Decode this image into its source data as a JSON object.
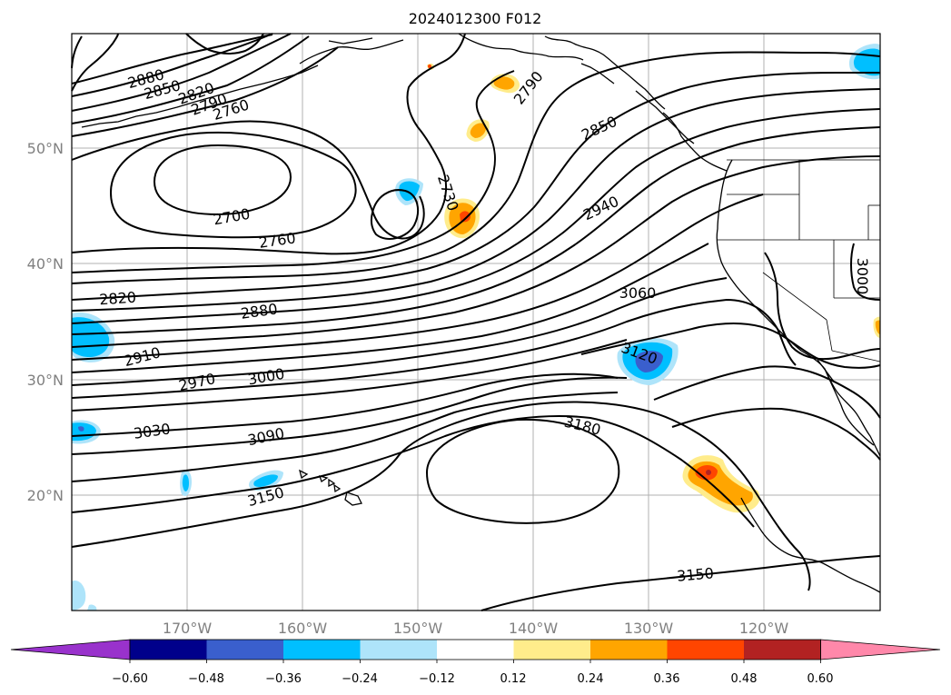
{
  "title": "2024012300 F012",
  "map": {
    "lat_labels": [
      "50°N",
      "40°N",
      "30°N",
      "20°N"
    ],
    "lon_labels": [
      "170°W",
      "160°W",
      "150°W",
      "140°W",
      "130°W",
      "120°W"
    ],
    "contour_labels": [
      "2880",
      "2850",
      "2820",
      "2790",
      "2760",
      "2700",
      "2760",
      "2730",
      "2790",
      "2850",
      "2940",
      "2820",
      "2880",
      "3060",
      "3000",
      "2910",
      "3120",
      "2970",
      "3000",
      "3030",
      "3090",
      "3180",
      "3150",
      "3150"
    ]
  },
  "colorbar": {
    "tick_labels": [
      "−0.60",
      "−0.48",
      "−0.36",
      "−0.24",
      "−0.12",
      "0.12",
      "0.24",
      "0.36",
      "0.48",
      "0.60"
    ],
    "colors": [
      "#9932cc",
      "#00008b",
      "#3a5fcd",
      "#00bfff",
      "#aee4fa",
      "#ffffff",
      "#ffec8b",
      "#ffa500",
      "#ff4500",
      "#b22222",
      "#ff88aa"
    ]
  }
}
